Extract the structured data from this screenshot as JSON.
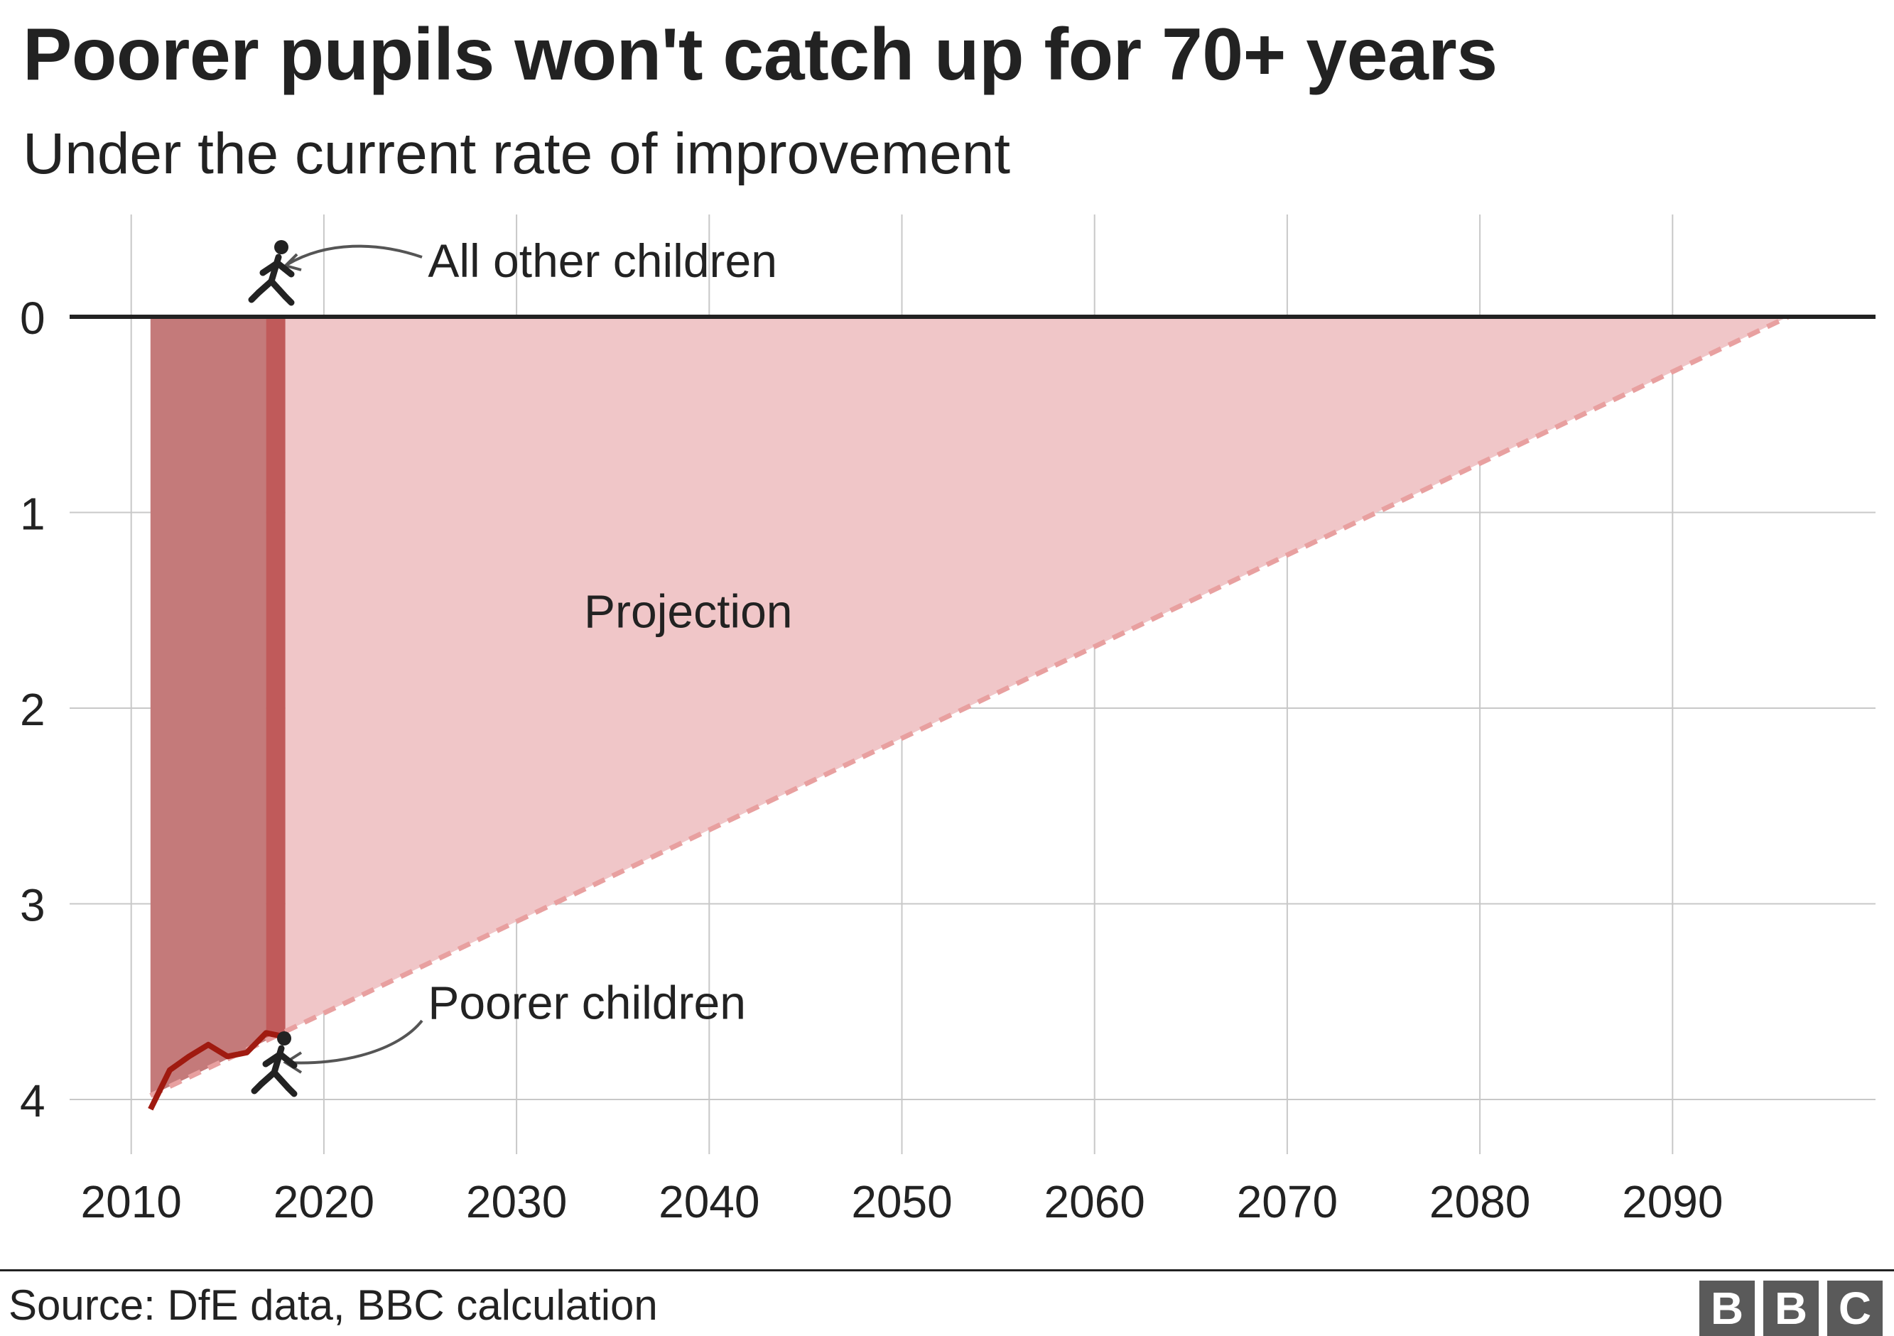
{
  "title": "Poorer pupils won't catch up for 70+ years",
  "subtitle": "Under the current rate of improvement",
  "source": "Source: DfE data, BBC calculation",
  "logo": [
    "B",
    "B",
    "C"
  ],
  "colors": {
    "historical_fill": "#c47a7a",
    "recent_band": "#c05a5a",
    "projection_fill": "#f0c6c8",
    "poorer_line": "#a01a10",
    "projection_line": "#e8a0a0",
    "zero_line": "#222222"
  },
  "chart_data": {
    "type": "line",
    "title": "Poorer pupils won't catch up for 70+ years",
    "subtitle": "Under the current rate of improvement",
    "xlabel": "",
    "ylabel": "",
    "xlim": [
      2008.5,
      2101
    ],
    "ylim": [
      0,
      4.25
    ],
    "y_inverted": true,
    "grid": true,
    "x_ticks": [
      2010,
      2020,
      2030,
      2040,
      2050,
      2060,
      2070,
      2080,
      2090
    ],
    "y_ticks": [
      0,
      1,
      2,
      3,
      4
    ],
    "series": [
      {
        "name": "Poorer children",
        "style": "solid",
        "x": [
          2011,
          2012,
          2013,
          2014,
          2015,
          2016,
          2017,
          2018
        ],
        "y": [
          4.05,
          3.85,
          3.78,
          3.72,
          3.78,
          3.76,
          3.66,
          3.68
        ]
      },
      {
        "name": "Projection",
        "style": "dashed",
        "x": [
          2011,
          2096
        ],
        "y": [
          3.98,
          0
        ]
      },
      {
        "name": "All other children",
        "style": "solid",
        "x": [
          2011,
          2101
        ],
        "y": [
          0,
          0
        ]
      }
    ],
    "regions": [
      {
        "name": "historical",
        "x_start": 2011,
        "x_end": 2017
      },
      {
        "name": "recent",
        "x_start": 2017,
        "x_end": 2018
      },
      {
        "name": "Projection",
        "x_start": 2018,
        "x_end": 2096
      }
    ],
    "annotations": [
      {
        "text": "All other children",
        "x": 2025.4,
        "y": -0.29
      },
      {
        "text": "Poorer children",
        "x": 2025.4,
        "y": 3.5
      },
      {
        "text": "Projection",
        "x": 2033.5,
        "y": 1.5
      }
    ]
  }
}
